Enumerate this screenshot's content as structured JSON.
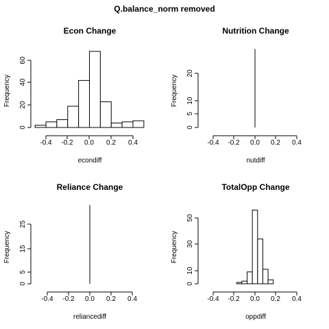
{
  "title": "Q.balance_norm removed",
  "chart_data": [
    {
      "type": "histogram",
      "title": "Econ Change",
      "xlabel": "econdiff",
      "ylabel": "Frequency",
      "bin_edges": [
        -0.5,
        -0.4,
        -0.3,
        -0.2,
        -0.1,
        0.0,
        0.1,
        0.2,
        0.3,
        0.4,
        0.5
      ],
      "values": [
        2,
        5,
        7,
        19,
        42,
        68,
        23,
        4,
        5,
        6
      ],
      "xlim": [
        -0.5,
        0.5
      ],
      "ylim": [
        0,
        70
      ],
      "xticks": [
        -0.4,
        -0.2,
        0.0,
        0.2,
        0.4
      ],
      "xtick_labels": [
        "-0.4",
        "-0.2",
        "0.0",
        "0.2",
        "0.4"
      ],
      "yticks": [
        0,
        20,
        40,
        60
      ],
      "ytick_labels": [
        "0",
        "20",
        "40",
        "60"
      ]
    },
    {
      "type": "histogram",
      "title": "Nutrition Change",
      "xlabel": "nutdiff",
      "ylabel": "Frequency",
      "bin_edges": [
        0.0,
        0.0
      ],
      "values": [
        29
      ],
      "xlim": [
        -0.4,
        0.4
      ],
      "ylim": [
        0,
        29
      ],
      "xticks": [
        -0.4,
        -0.2,
        0.0,
        0.2,
        0.4
      ],
      "xtick_labels": [
        "-0.4",
        "-0.2",
        "0.0",
        "0.2",
        "0.4"
      ],
      "yticks": [
        0,
        5,
        10,
        20
      ],
      "ytick_labels": [
        "0",
        "5",
        "10",
        "20"
      ]
    },
    {
      "type": "histogram",
      "title": "Reliance Change",
      "xlabel": "reliancediff",
      "ylabel": "Frequency",
      "bin_edges": [
        0.0,
        0.0
      ],
      "values": [
        33
      ],
      "xlim": [
        -0.4,
        0.4
      ],
      "ylim": [
        0,
        33
      ],
      "xticks": [
        -0.4,
        -0.2,
        0.0,
        0.2,
        0.4
      ],
      "xtick_labels": [
        "-0.4",
        "-0.2",
        "0.0",
        "0.2",
        "0.4"
      ],
      "yticks": [
        0,
        5,
        15,
        25
      ],
      "ytick_labels": [
        "0",
        "5",
        "15",
        "25"
      ]
    },
    {
      "type": "histogram",
      "title": "TotalOpp Change",
      "xlabel": "oppdiff",
      "ylabel": "Frequency",
      "bin_edges": [
        -0.175,
        -0.125,
        -0.075,
        -0.025,
        0.025,
        0.075,
        0.125,
        0.175
      ],
      "values": [
        1,
        2,
        9,
        56,
        34,
        11,
        3
      ],
      "xlim": [
        -0.4,
        0.4
      ],
      "ylim": [
        0,
        56
      ],
      "xticks": [
        -0.4,
        -0.2,
        0.0,
        0.2,
        0.4
      ],
      "xtick_labels": [
        "-0.4",
        "-0.2",
        "0.0",
        "0.2",
        "0.4"
      ],
      "yticks": [
        0,
        10,
        30,
        50
      ],
      "ytick_labels": [
        "0",
        "10",
        "30",
        "50"
      ]
    }
  ]
}
